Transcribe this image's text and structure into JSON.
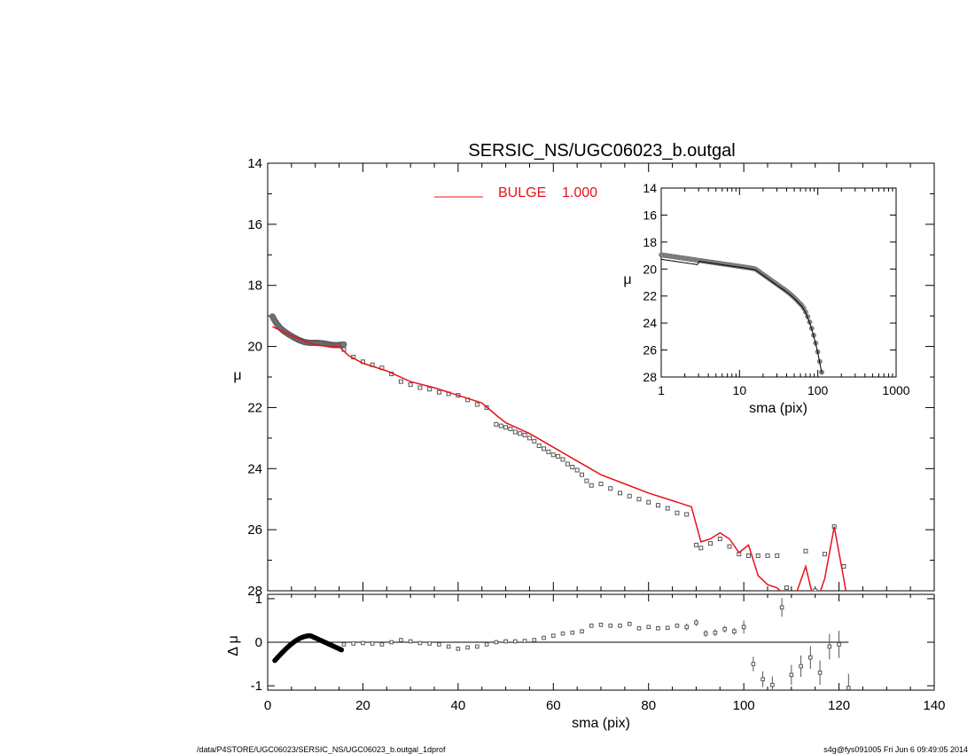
{
  "title": "SERSIC_NS/UGC06023_b.outgal",
  "footer_left": "/data/P4STORE/UGC06023/SERSIC_NS/UGC06023_b.outgal_1dprof",
  "footer_right": "s4g@fys091005  Fri Jun  6 09:49:05 2014",
  "colors": {
    "model": "#e8101a",
    "data": "#555555"
  },
  "chart_data": [
    {
      "type": "scatter",
      "panel": "main",
      "xlabel": "",
      "ylabel": "μ",
      "xlim": [
        0,
        140
      ],
      "ylim": [
        28,
        14
      ],
      "x_ticks": [
        0,
        20,
        40,
        60,
        80,
        100,
        120,
        140
      ],
      "y_ticks": [
        14,
        16,
        18,
        20,
        22,
        24,
        26,
        28
      ],
      "legend": {
        "label": "BULGE",
        "value": "1.000"
      },
      "series": [
        {
          "name": "BULGE",
          "kind": "line",
          "x": [
            1,
            5,
            10,
            13,
            15,
            17,
            20,
            25,
            30,
            35,
            40,
            45,
            48,
            50,
            55,
            60,
            65,
            70,
            75,
            80,
            85,
            89,
            91,
            93,
            95,
            97,
            99,
            101,
            103,
            105,
            107,
            109,
            111,
            113,
            115,
            117,
            119,
            121,
            122
          ],
          "y": [
            19.35,
            19.65,
            19.95,
            20.0,
            20.0,
            20.3,
            20.55,
            20.8,
            21.15,
            21.35,
            21.6,
            21.85,
            22.25,
            22.5,
            22.85,
            23.3,
            23.75,
            24.2,
            24.5,
            24.8,
            25.05,
            25.25,
            26.4,
            26.3,
            26.1,
            26.3,
            26.75,
            26.5,
            27.5,
            27.8,
            27.9,
            28.2,
            28.1,
            27.2,
            28.5,
            27.6,
            25.9,
            27.6,
            28.5
          ]
        },
        {
          "name": "",
          "kind": "points",
          "x": [
            16,
            18,
            20,
            22,
            24,
            26,
            28,
            30,
            32,
            34,
            36,
            38,
            40,
            42,
            44,
            46,
            48,
            49,
            50,
            51,
            52,
            53,
            54,
            55,
            56,
            57,
            58,
            59,
            60,
            61,
            62,
            63,
            64,
            65,
            66,
            67,
            68,
            70,
            72,
            74,
            76,
            78,
            80,
            82,
            84,
            86,
            88,
            90,
            91,
            93,
            95,
            97,
            99,
            101,
            103,
            105,
            107,
            109,
            111,
            113,
            115,
            117,
            119,
            121,
            122
          ],
          "y": [
            20.1,
            20.35,
            20.5,
            20.6,
            20.7,
            20.9,
            21.15,
            21.25,
            21.35,
            21.4,
            21.5,
            21.55,
            21.6,
            21.75,
            21.9,
            22.0,
            22.55,
            22.6,
            22.65,
            22.7,
            22.8,
            22.85,
            22.9,
            23.0,
            23.1,
            23.25,
            23.35,
            23.45,
            23.55,
            23.6,
            23.7,
            23.85,
            23.95,
            24.05,
            24.2,
            24.4,
            24.55,
            24.5,
            24.65,
            24.8,
            24.9,
            25.0,
            25.1,
            25.2,
            25.3,
            25.45,
            25.5,
            26.5,
            26.6,
            26.45,
            26.3,
            26.55,
            26.8,
            26.85,
            26.85,
            26.85,
            26.85,
            27.9,
            28.3,
            26.7,
            28.0,
            26.8,
            25.9,
            27.2,
            28.6
          ]
        }
      ]
    },
    {
      "type": "scatter",
      "panel": "residual",
      "xlabel": "sma (pix)",
      "ylabel": "Δ μ",
      "xlim": [
        0,
        140
      ],
      "ylim": [
        -1.1,
        1.1
      ],
      "x_ticks": [
        0,
        20,
        40,
        60,
        80,
        100,
        120,
        140
      ],
      "y_ticks": [
        -1,
        0,
        1
      ],
      "series": [
        {
          "name": "",
          "kind": "points",
          "x": [
            16,
            18,
            20,
            22,
            24,
            26,
            28,
            30,
            32,
            34,
            36,
            38,
            40,
            42,
            44,
            46,
            48,
            50,
            52,
            54,
            56,
            58,
            60,
            62,
            64,
            66,
            68,
            70,
            72,
            74,
            76,
            78,
            80,
            82,
            84,
            86,
            88,
            90,
            92,
            94,
            96,
            98,
            100,
            102,
            104,
            106,
            108,
            110,
            112,
            114,
            116,
            118,
            120,
            122
          ],
          "y": [
            -0.05,
            -0.03,
            -0.02,
            -0.03,
            -0.05,
            0.0,
            0.05,
            0.02,
            -0.02,
            -0.03,
            -0.05,
            -0.1,
            -0.15,
            -0.12,
            -0.1,
            -0.05,
            0.0,
            0.02,
            0.02,
            0.03,
            0.05,
            0.1,
            0.15,
            0.2,
            0.22,
            0.25,
            0.38,
            0.4,
            0.38,
            0.38,
            0.42,
            0.32,
            0.35,
            0.32,
            0.33,
            0.38,
            0.35,
            0.45,
            0.2,
            0.22,
            0.3,
            0.25,
            0.35,
            -0.5,
            -0.85,
            -0.98,
            0.8,
            -0.75,
            -0.55,
            -0.35,
            -0.7,
            -0.1,
            -0.05,
            -1.05
          ]
        }
      ]
    },
    {
      "type": "scatter",
      "panel": "inset",
      "xlabel": "sma (pix)",
      "ylabel": "μ",
      "x_scale": "log",
      "xlim": [
        1,
        1000
      ],
      "ylim": [
        28,
        14
      ],
      "x_ticks": [
        1,
        10,
        100,
        1000
      ],
      "y_ticks": [
        14,
        16,
        18,
        20,
        22,
        24,
        26,
        28
      ]
    }
  ]
}
